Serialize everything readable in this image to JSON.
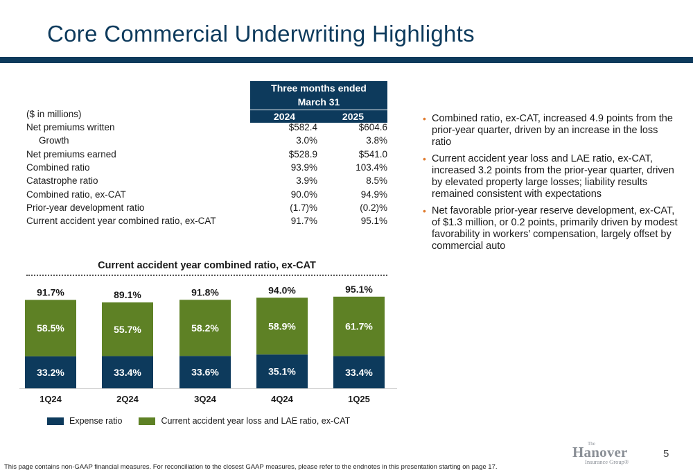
{
  "title": "Core Commercial Underwriting Highlights",
  "table": {
    "header_caption_line1": "Three months ended",
    "header_caption_line2": "March 31",
    "years": [
      "2024",
      "2025"
    ],
    "units_label": "($ in millions)",
    "rows": [
      {
        "label": "Net premiums written",
        "v2024": "$582.4",
        "v2025": "$604.6",
        "indent": false
      },
      {
        "label": "Growth",
        "v2024": "3.0%",
        "v2025": "3.8%",
        "indent": true
      },
      {
        "label": "Net premiums earned",
        "v2024": "$528.9",
        "v2025": "$541.0",
        "indent": false
      },
      {
        "label": "Combined ratio",
        "v2024": "93.9%",
        "v2025": "103.4%",
        "indent": false
      },
      {
        "label": "Catastrophe ratio",
        "v2024": "3.9%",
        "v2025": "8.5%",
        "indent": false
      },
      {
        "label": "Combined ratio, ex-CAT",
        "v2024": "90.0%",
        "v2025": "94.9%",
        "indent": false
      },
      {
        "label": "Prior-year development ratio",
        "v2024": "(1.7)%",
        "v2025": "(0.2)%",
        "indent": false
      },
      {
        "label": "Current accident year combined ratio, ex-CAT",
        "v2024": "91.7%",
        "v2025": "95.1%",
        "indent": false
      }
    ]
  },
  "bullets": [
    "Combined ratio, ex-CAT, increased 4.9 points from the prior-year quarter, driven by an increase in the loss ratio",
    "Current accident year loss and LAE ratio, ex-CAT, increased 3.2 points from the prior-year quarter, driven by elevated property large losses; liability results remained consistent with expectations",
    "Net favorable prior-year reserve development, ex-CAT, of $1.3 million, or 0.2 points, primarily driven by modest favorability in workers’ compensation, largely offset by commercial auto"
  ],
  "chart_data": {
    "type": "bar",
    "stacked": true,
    "title": "Current accident year combined ratio, ex-CAT",
    "categories": [
      "1Q24",
      "2Q24",
      "3Q24",
      "4Q24",
      "1Q25"
    ],
    "series": [
      {
        "name": "Expense ratio",
        "color": "#0d3a5c",
        "values": [
          33.2,
          33.4,
          33.6,
          35.1,
          33.4
        ],
        "labels": [
          "33.2%",
          "33.4%",
          "33.6%",
          "35.1%",
          "33.4%"
        ]
      },
      {
        "name": "Current accident year loss and LAE ratio, ex-CAT",
        "color": "#5e8125",
        "values": [
          58.5,
          55.7,
          58.2,
          58.9,
          61.7
        ],
        "labels": [
          "58.5%",
          "55.7%",
          "58.2%",
          "58.9%",
          "61.7%"
        ]
      }
    ],
    "totals": [
      "91.7%",
      "89.1%",
      "91.8%",
      "94.0%",
      "95.1%"
    ],
    "legend_position": "bottom-left",
    "grid": false
  },
  "legend": {
    "expense_label": "Expense ratio",
    "loss_label": "Current accident year loss and LAE ratio, ex-CAT"
  },
  "footnote": "This page contains non-GAAP financial measures. For reconciliation to the closest GAAP measures, please refer to the endnotes in this presentation starting on page 17.",
  "page_number": "5",
  "logo": {
    "the": "The",
    "main": "Hanover",
    "sub": "Insurance Group®"
  }
}
